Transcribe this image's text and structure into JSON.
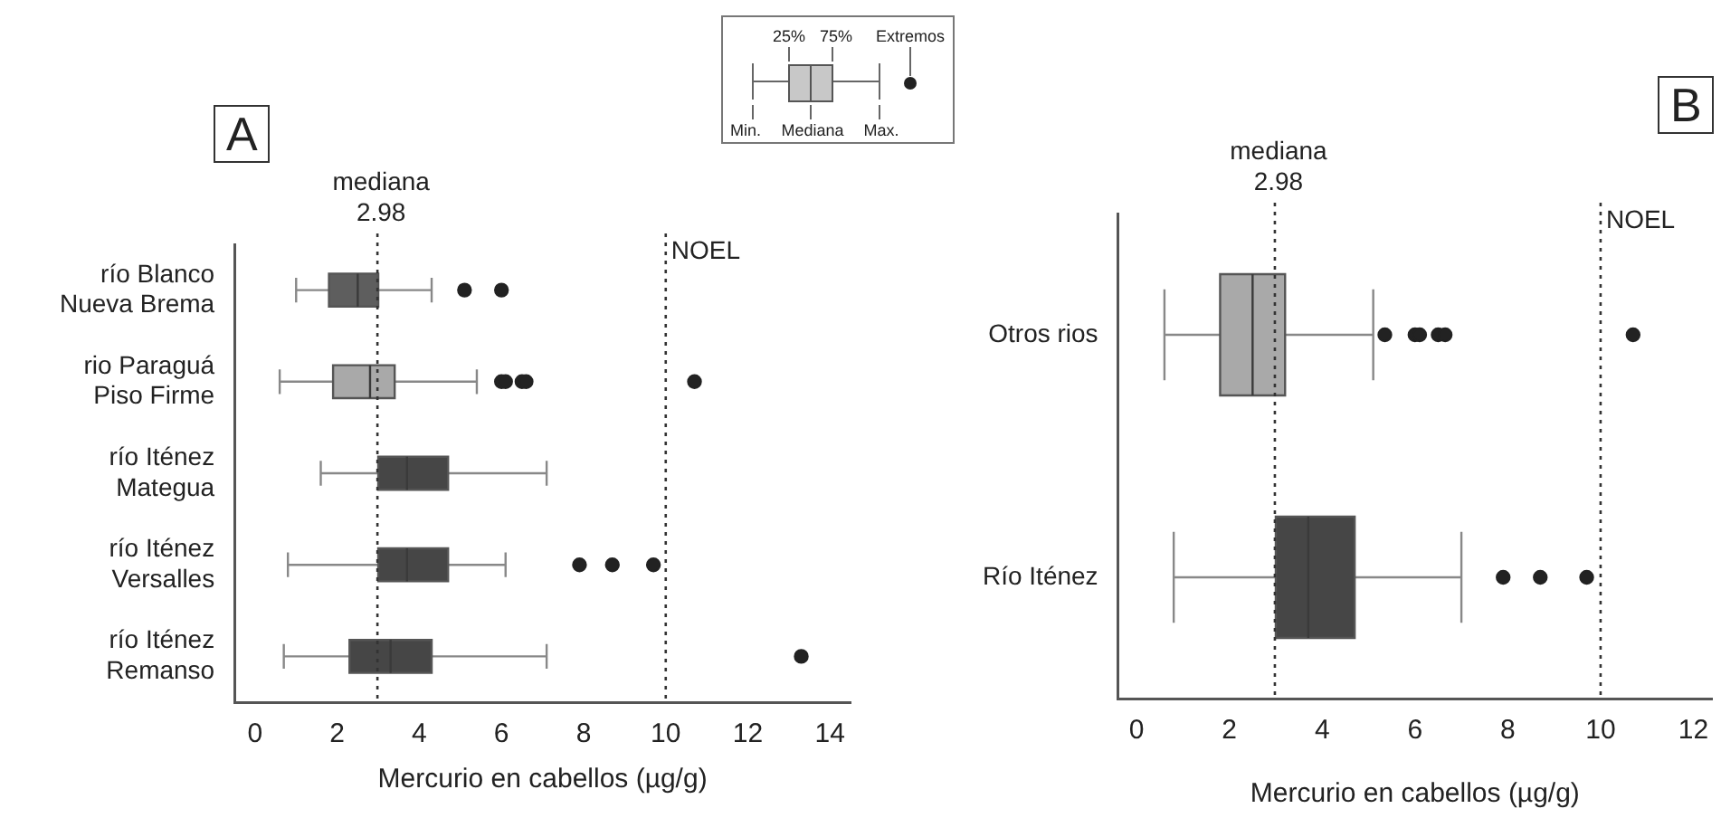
{
  "chart_data": [
    {
      "type": "box",
      "title": "A",
      "xlabel": "Mercurio en cabellos (µg/g)",
      "orientation": "horizontal",
      "categories": [
        "río Blanco\nNueva Brema",
        "rio Paraguá\nPiso Firme",
        "río Iténez\nMategua",
        "río Iténez\nVersalles",
        "río Iténez\nRemanso"
      ],
      "colors": [
        "#5e5e5e",
        "#a9a9a9",
        "#464646",
        "#464646",
        "#464646"
      ],
      "boxes": [
        {
          "low": 1.0,
          "q1": 1.8,
          "median": 2.5,
          "q3": 3.0,
          "high": 4.3,
          "outliers": [
            5.1,
            6.0
          ]
        },
        {
          "low": 0.6,
          "q1": 1.9,
          "median": 2.8,
          "q3": 3.4,
          "high": 5.4,
          "outliers": [
            6.0,
            6.1,
            6.5,
            6.6,
            10.7
          ]
        },
        {
          "low": 1.6,
          "q1": 3.0,
          "median": 3.7,
          "q3": 4.7,
          "high": 7.1
        },
        {
          "low": 0.8,
          "q1": 3.0,
          "median": 3.7,
          "q3": 4.7,
          "high": 6.1,
          "outliers": [
            7.9,
            8.7,
            9.7
          ]
        },
        {
          "low": 0.7,
          "q1": 2.3,
          "median": 3.3,
          "q3": 4.3,
          "high": 7.1,
          "outliers": [
            13.3
          ]
        }
      ],
      "xlim": [
        -0.5,
        14.5
      ],
      "xticks": [
        0,
        2,
        4,
        6,
        8,
        10,
        12,
        14
      ],
      "ref_lines": [
        {
          "axis": "x",
          "value": 2.98,
          "label": "mediana\n2.98",
          "line_style": "dotted",
          "color": "#333333"
        },
        {
          "axis": "x",
          "value": 10,
          "label": "NOEL",
          "line_style": "dotted",
          "color": "#333333"
        }
      ],
      "annotations": [
        "25%",
        "75%",
        "Extremos",
        "Min.",
        "Mediana",
        "Max."
      ],
      "grid": false,
      "legend": false
    },
    {
      "type": "box",
      "title": "B",
      "xlabel": "Mercurio en cabellos (µg/g)",
      "orientation": "horizontal",
      "categories": [
        "Otros rios",
        "Río Iténez"
      ],
      "colors": [
        "#a9a9a9",
        "#464646"
      ],
      "boxes": [
        {
          "low": 0.6,
          "q1": 1.8,
          "median": 2.5,
          "q3": 3.2,
          "high": 5.1,
          "outliers": [
            5.35,
            6.0,
            6.1,
            6.5,
            6.65,
            10.7
          ]
        },
        {
          "low": 0.8,
          "q1": 3.0,
          "median": 3.7,
          "q3": 4.7,
          "high": 7.0,
          "outliers": [
            7.9,
            8.7,
            9.7
          ]
        }
      ],
      "xlim": [
        -0.4,
        12.4
      ],
      "xticks": [
        0,
        2,
        4,
        6,
        8,
        10,
        12
      ],
      "ref_lines": [
        {
          "axis": "x",
          "value": 2.98,
          "label": "mediana\n2.98",
          "line_style": "dotted",
          "color": "#333333"
        },
        {
          "axis": "x",
          "value": 10,
          "label": "NOEL",
          "line_style": "dotted",
          "color": "#333333"
        }
      ],
      "grid": false,
      "legend": false
    }
  ]
}
